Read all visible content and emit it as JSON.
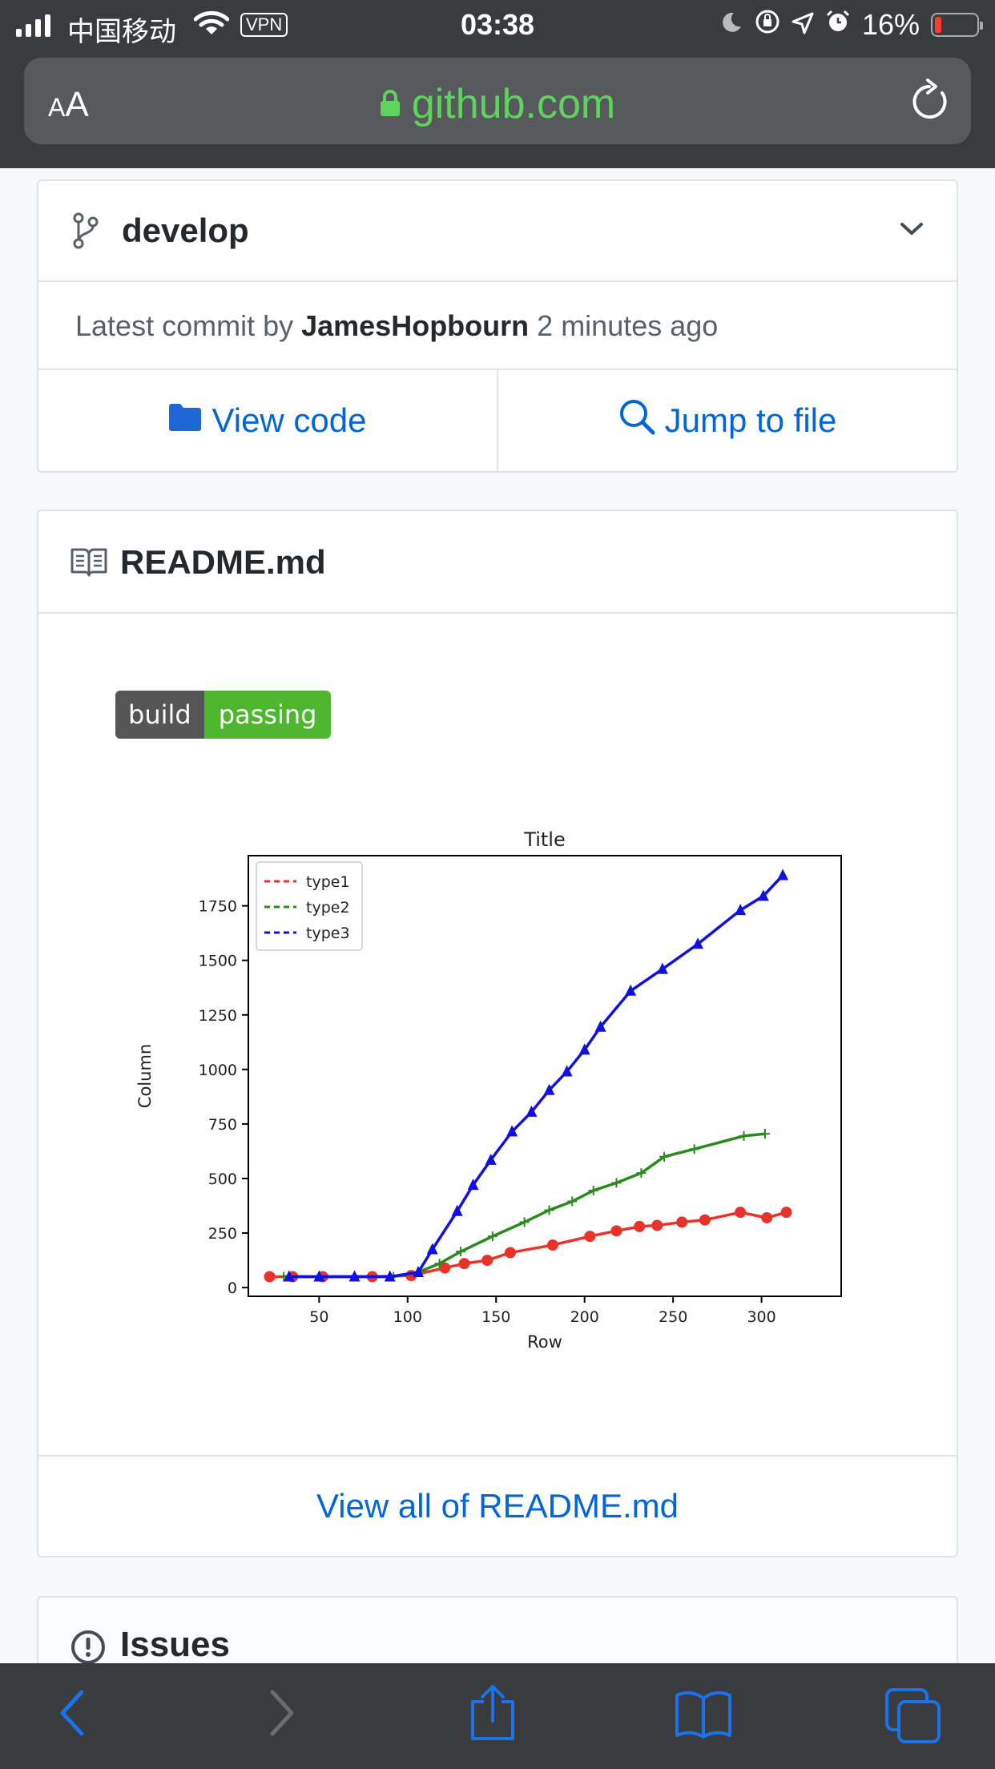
{
  "status_bar": {
    "carrier": "中国移动",
    "vpn": "VPN",
    "time": "03:38",
    "battery": "16%",
    "battery_level": 0.16
  },
  "browser": {
    "text_size_button": "AA",
    "url": "github.com"
  },
  "branch_card": {
    "branch": "develop",
    "commit_prefix": "Latest commit by",
    "commit_author": "JamesHopbourn",
    "commit_time": "2 minutes ago",
    "view_code": "View code",
    "jump_to_file": "Jump to file"
  },
  "readme": {
    "title": "README.md",
    "badge_left": "build",
    "badge_right": "passing",
    "view_all": "View all of README.md"
  },
  "issues": {
    "title": "Issues"
  },
  "chart_data": {
    "type": "line",
    "title": "Title",
    "xlabel": "Row",
    "ylabel": "Column",
    "xlim": [
      10,
      345
    ],
    "ylim": [
      -40,
      1980
    ],
    "xticks": [
      50,
      100,
      150,
      200,
      250,
      300
    ],
    "yticks": [
      0,
      250,
      500,
      750,
      1000,
      1250,
      1500,
      1750
    ],
    "legend_position": "top-left",
    "series": [
      {
        "name": "type1",
        "color": "#e8332a",
        "marker": "circle",
        "x": [
          22,
          35,
          52,
          80,
          102,
          121,
          132,
          145,
          158,
          182,
          203,
          218,
          231,
          241,
          255,
          268,
          288,
          303,
          314
        ],
        "y": [
          50,
          50,
          50,
          50,
          55,
          90,
          110,
          125,
          160,
          195,
          235,
          260,
          280,
          285,
          300,
          310,
          345,
          320,
          345
        ]
      },
      {
        "name": "type2",
        "color": "#2a8a1e",
        "marker": "plus",
        "x": [
          30,
          50,
          70,
          92,
          106,
          118,
          130,
          148,
          166,
          180,
          193,
          205,
          218,
          232,
          245,
          262,
          290,
          302
        ],
        "y": [
          50,
          50,
          50,
          50,
          70,
          110,
          165,
          235,
          300,
          355,
          395,
          445,
          480,
          525,
          600,
          635,
          695,
          705
        ]
      },
      {
        "name": "type3",
        "color": "#1010e0",
        "marker": "triangle",
        "x": [
          33,
          50,
          70,
          90,
          106,
          114,
          128,
          137,
          147,
          159,
          170,
          180,
          190,
          200,
          209,
          226,
          244,
          264,
          288,
          301,
          312
        ],
        "y": [
          50,
          50,
          50,
          50,
          70,
          175,
          350,
          470,
          585,
          715,
          805,
          905,
          990,
          1090,
          1195,
          1360,
          1460,
          1575,
          1730,
          1795,
          1890
        ]
      }
    ]
  }
}
